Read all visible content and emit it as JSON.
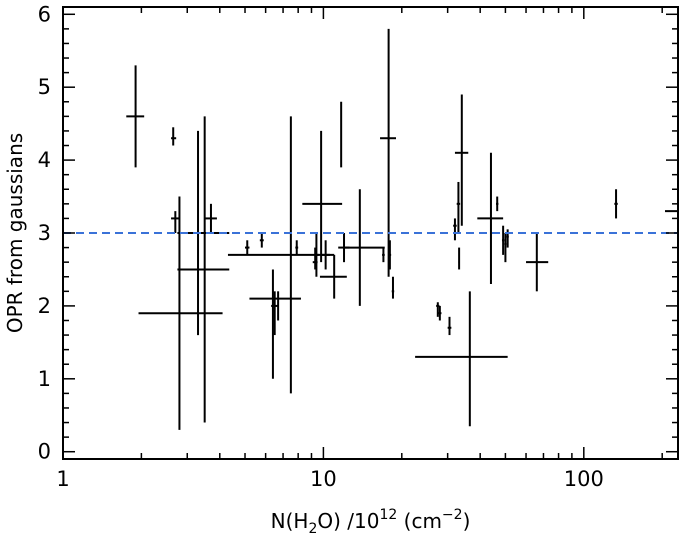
{
  "chart_data": {
    "type": "scatter",
    "xscale": "log",
    "xlim": [
      1,
      230
    ],
    "ylim": [
      -0.1,
      6.1
    ],
    "xlabel_parts": [
      "N(H",
      "2",
      "O)  /10",
      "12",
      " (cm",
      "−2",
      ")"
    ],
    "ylabel": "OPR from gaussians",
    "x_ticks": [
      1,
      10,
      100
    ],
    "x_tick_labels": [
      "1",
      "10",
      "100"
    ],
    "y_ticks": [
      0,
      1,
      2,
      3,
      4,
      5,
      6
    ],
    "y_tick_labels": [
      "0",
      "1",
      "2",
      "3",
      "4",
      "5",
      "6"
    ],
    "reference_line": {
      "y": 3.0,
      "color": "#3a72d8",
      "style": "dashed"
    },
    "marker_color": "#000000",
    "grid": false,
    "legend": "none",
    "points": [
      {
        "x": 1.9,
        "y": 4.6,
        "xerr": [
          1.75,
          2.05
        ],
        "yerr": [
          3.9,
          5.3
        ]
      },
      {
        "x": 2.65,
        "y": 4.3,
        "xerr": [
          2.6,
          2.72
        ],
        "yerr": [
          4.2,
          4.45
        ]
      },
      {
        "x": 2.7,
        "y": 3.2,
        "xerr": [
          2.6,
          2.8
        ],
        "yerr": [
          3.0,
          3.3
        ]
      },
      {
        "x": 2.8,
        "y": 1.9,
        "xerr": [
          1.95,
          4.1
        ],
        "yerr": [
          0.3,
          3.5
        ]
      },
      {
        "x": 3.3,
        "y": 3.0,
        "xerr": [
          2.75,
          4.35
        ],
        "yerr": [
          1.6,
          4.4
        ]
      },
      {
        "x": 3.5,
        "y": 2.5,
        "xerr": [
          2.75,
          4.35
        ],
        "yerr": [
          0.4,
          4.6
        ]
      },
      {
        "x": 3.7,
        "y": 3.2,
        "xerr": [
          3.5,
          3.9
        ],
        "yerr": [
          3.0,
          3.4
        ]
      },
      {
        "x": 5.1,
        "y": 2.8,
        "xerr": [
          5.0,
          5.2
        ],
        "yerr": [
          2.7,
          2.9
        ]
      },
      {
        "x": 5.8,
        "y": 2.9,
        "xerr": [
          5.7,
          5.9
        ],
        "yerr": [
          2.8,
          3.0
        ]
      },
      {
        "x": 6.7,
        "y": 2.1,
        "xerr": [
          5.2,
          8.2
        ],
        "yerr": [
          1.8,
          2.2
        ]
      },
      {
        "x": 6.5,
        "y": 2.0,
        "xerr": [
          6.3,
          6.7
        ],
        "yerr": [
          1.6,
          2.2
        ]
      },
      {
        "x": 7.5,
        "y": 2.7,
        "xerr": [
          4.3,
          11.0
        ],
        "yerr": [
          0.8,
          4.6
        ]
      },
      {
        "x": 6.4,
        "y": 2.05,
        "xerr": [
          6.35,
          6.45
        ],
        "yerr": [
          1.0,
          2.5
        ]
      },
      {
        "x": 7.9,
        "y": 2.8,
        "xerr": [
          7.8,
          8.0
        ],
        "yerr": [
          2.7,
          2.9
        ]
      },
      {
        "x": 9.3,
        "y": 2.6,
        "xerr": [
          9.1,
          9.5
        ],
        "yerr": [
          2.5,
          2.8
        ]
      },
      {
        "x": 9.4,
        "y": 2.7,
        "xerr": [
          9.3,
          9.6
        ],
        "yerr": [
          2.4,
          3.0
        ]
      },
      {
        "x": 9.8,
        "y": 3.4,
        "xerr": [
          8.3,
          11.8
        ],
        "yerr": [
          2.6,
          4.4
        ]
      },
      {
        "x": 10.2,
        "y": 2.7,
        "xerr": [
          9.8,
          10.6
        ],
        "yerr": [
          2.5,
          2.9
        ]
      },
      {
        "x": 11.0,
        "y": 2.4,
        "xerr": [
          9.7,
          12.3
        ],
        "yerr": [
          2.1,
          2.7
        ]
      },
      {
        "x": 11.7,
        "y": 4.3,
        "xerr": [
          11.65,
          11.75
        ],
        "yerr": [
          3.9,
          4.8
        ]
      },
      {
        "x": 12.0,
        "y": 2.8,
        "xerr": [
          11.4,
          12.6
        ],
        "yerr": [
          2.6,
          3.0
        ]
      },
      {
        "x": 13.8,
        "y": 2.8,
        "xerr": [
          11.9,
          17.2
        ],
        "yerr": [
          2.0,
          3.6
        ]
      },
      {
        "x": 17.0,
        "y": 2.7,
        "xerr": [
          16.8,
          17.2
        ],
        "yerr": [
          2.6,
          2.8
        ]
      },
      {
        "x": 18.0,
        "y": 2.7,
        "xerr": [
          17.8,
          18.2
        ],
        "yerr": [
          2.5,
          2.9
        ]
      },
      {
        "x": 17.8,
        "y": 4.3,
        "xerr": [
          16.5,
          19.0
        ],
        "yerr": [
          2.4,
          5.8
        ]
      },
      {
        "x": 18.5,
        "y": 2.2,
        "xerr": [
          18.3,
          18.7
        ],
        "yerr": [
          2.1,
          2.4
        ]
      },
      {
        "x": 27.5,
        "y": 2.0,
        "xerr": [
          27.1,
          27.9
        ],
        "yerr": [
          1.85,
          2.05
        ]
      },
      {
        "x": 28.0,
        "y": 1.9,
        "xerr": [
          27.6,
          28.4
        ],
        "yerr": [
          1.8,
          2.0
        ]
      },
      {
        "x": 30.5,
        "y": 1.7,
        "xerr": [
          30.0,
          31.0
        ],
        "yerr": [
          1.6,
          1.85
        ]
      },
      {
        "x": 32.0,
        "y": 3.1,
        "xerr": [
          31.5,
          32.5
        ],
        "yerr": [
          2.9,
          3.2
        ]
      },
      {
        "x": 33.0,
        "y": 3.4,
        "xerr": [
          32.5,
          33.5
        ],
        "yerr": [
          3.0,
          3.7
        ]
      },
      {
        "x": 33.2,
        "y": 2.6,
        "xerr": [
          33.0,
          33.4
        ],
        "yerr": [
          2.5,
          2.8
        ]
      },
      {
        "x": 34.0,
        "y": 4.1,
        "xerr": [
          32.0,
          36.0
        ],
        "yerr": [
          3.1,
          4.9
        ]
      },
      {
        "x": 36.5,
        "y": 1.3,
        "xerr": [
          22.5,
          51.0
        ],
        "yerr": [
          0.35,
          2.2
        ]
      },
      {
        "x": 44.0,
        "y": 3.2,
        "xerr": [
          39.0,
          49.0
        ],
        "yerr": [
          2.3,
          4.1
        ]
      },
      {
        "x": 46.5,
        "y": 3.4,
        "xerr": [
          46.0,
          47.0
        ],
        "yerr": [
          3.3,
          3.5
        ]
      },
      {
        "x": 49.0,
        "y": 2.9,
        "xerr": [
          48.5,
          49.5
        ],
        "yerr": [
          2.7,
          3.1
        ]
      },
      {
        "x": 50.0,
        "y": 2.85,
        "xerr": [
          49.5,
          50.5
        ],
        "yerr": [
          2.6,
          3.0
        ]
      },
      {
        "x": 51.0,
        "y": 2.95,
        "xerr": [
          50.5,
          51.5
        ],
        "yerr": [
          2.8,
          3.05
        ]
      },
      {
        "x": 66.0,
        "y": 2.6,
        "xerr": [
          60.0,
          73.0
        ],
        "yerr": [
          2.2,
          3.0
        ]
      },
      {
        "x": 133.0,
        "y": 3.4,
        "xerr": [
          131.0,
          135.0
        ],
        "yerr": [
          3.2,
          3.6
        ]
      },
      {
        "x": 230.0,
        "y": 3.3,
        "xerr": [
          205.0,
          240.0
        ],
        "yerr": [
          3.3,
          3.3
        ]
      }
    ]
  }
}
